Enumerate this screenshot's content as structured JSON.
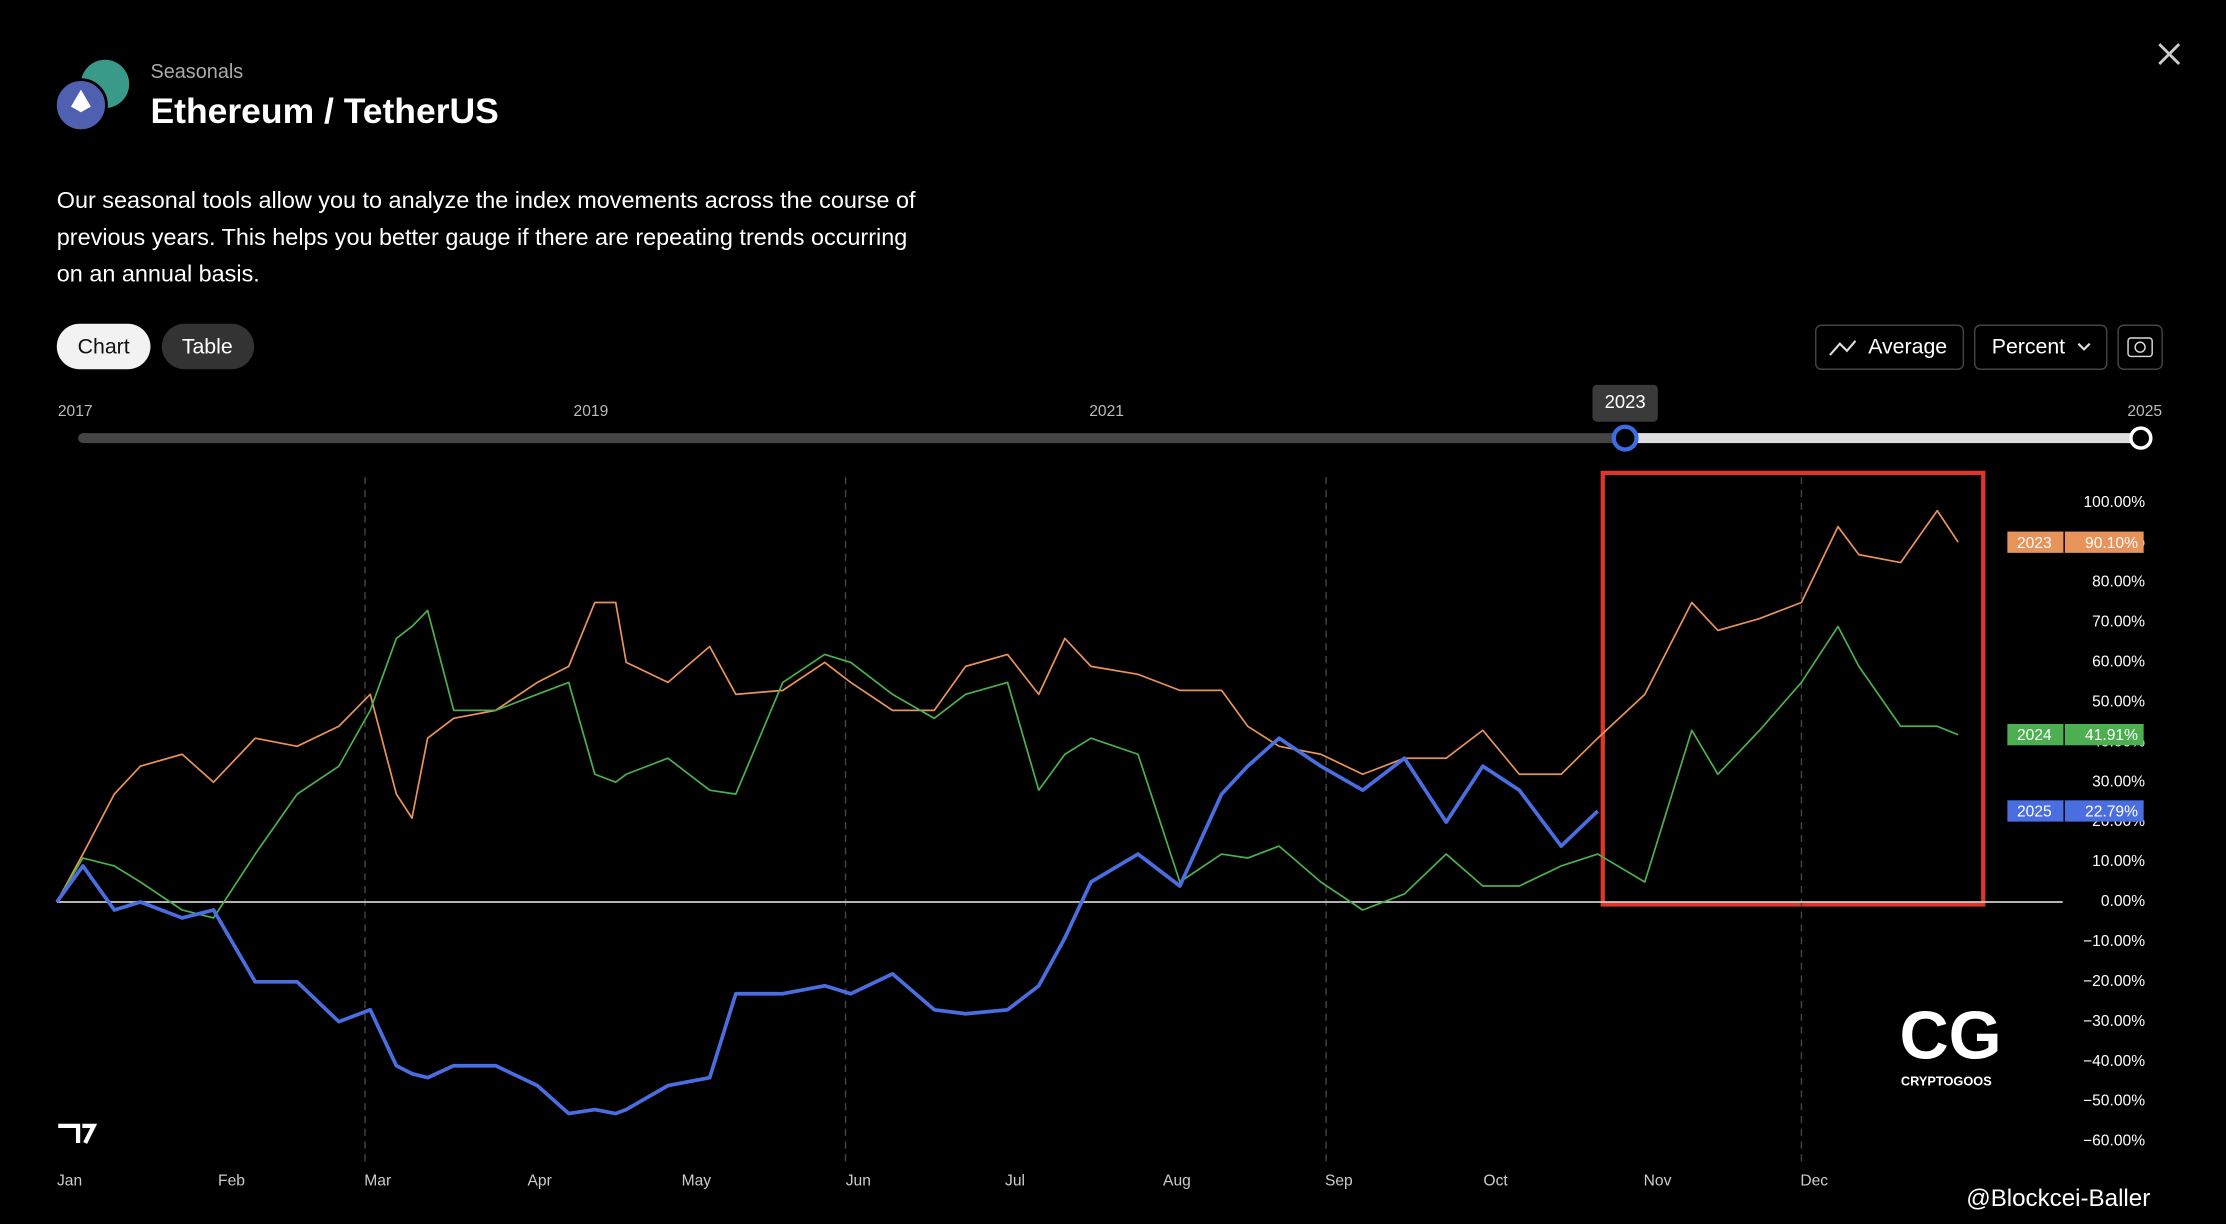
{
  "header": {
    "subtitle": "Seasonals",
    "title": "Ethereum / TetherUS"
  },
  "description": [
    "Our seasonal tools allow you to analyze the index movements across the course of",
    "previous years. This helps you better gauge if there are repeating trends occurring",
    "on an annual basis."
  ],
  "tabs": [
    "Chart",
    "Table"
  ],
  "controls": {
    "average": "Average",
    "mode": "Percent"
  },
  "slider": {
    "range": [
      2017,
      2025
    ],
    "ticks": [
      2017,
      2019,
      2021,
      2025
    ],
    "selected_start": 2023
  },
  "chart_data": {
    "type": "line",
    "x": [
      0,
      5,
      11,
      16,
      24,
      30,
      38,
      46,
      54,
      60,
      65,
      68,
      71,
      76,
      84,
      92,
      98,
      103,
      107,
      109,
      117,
      125,
      130,
      139,
      147,
      152,
      160,
      168,
      174,
      182,
      188,
      193,
      198,
      207,
      215,
      223,
      228,
      234,
      242,
      250,
      258,
      266,
      273,
      280,
      288,
      295,
      304,
      313,
      318,
      326,
      334,
      341,
      345,
      353,
      360,
      364
    ],
    "xlim": [
      0,
      365
    ],
    "xticks": [
      {
        "value": 0,
        "label": "Jan"
      },
      {
        "value": 31,
        "label": "Feb"
      },
      {
        "value": 59,
        "label": "Mar"
      },
      {
        "value": 90,
        "label": "Apr"
      },
      {
        "value": 120,
        "label": "May"
      },
      {
        "value": 151,
        "label": "Jun"
      },
      {
        "value": 181,
        "label": "Jul"
      },
      {
        "value": 212,
        "label": "Aug"
      },
      {
        "value": 243,
        "label": "Sep"
      },
      {
        "value": 273,
        "label": "Oct"
      },
      {
        "value": 304,
        "label": "Nov"
      },
      {
        "value": 334,
        "label": "Dec"
      }
    ],
    "ylim": [
      -60,
      100
    ],
    "yticks": [
      {
        "value": 100,
        "label": "100.00%"
      },
      {
        "value": 90,
        "label": "90.00%"
      },
      {
        "value": 80,
        "label": "80.00%"
      },
      {
        "value": 70,
        "label": "70.00%"
      },
      {
        "value": 60,
        "label": "60.00%"
      },
      {
        "value": 50,
        "label": "50.00%"
      },
      {
        "value": 40,
        "label": "40.00%"
      },
      {
        "value": 30,
        "label": "30.00%"
      },
      {
        "value": 20,
        "label": "20.00%"
      },
      {
        "value": 10,
        "label": "10.00%"
      },
      {
        "value": 0,
        "label": "0.00%"
      },
      {
        "value": -10,
        "label": "−10.00%"
      },
      {
        "value": -20,
        "label": "−20.00%"
      },
      {
        "value": -30,
        "label": "−30.00%"
      },
      {
        "value": -40,
        "label": "−40.00%"
      },
      {
        "value": -50,
        "label": "−50.00%"
      },
      {
        "value": -60,
        "label": "−60.00%"
      }
    ],
    "series": [
      {
        "name": "2023",
        "color": "#e8935a",
        "values": [
          0,
          12,
          27,
          34,
          37,
          30,
          41,
          39,
          44,
          52,
          27,
          21,
          41,
          46,
          48,
          55,
          59,
          75,
          75,
          60,
          55,
          64,
          52,
          53,
          60,
          55,
          48,
          48,
          59,
          62,
          52,
          66,
          59,
          57,
          53,
          53,
          44,
          39,
          37,
          32,
          36,
          36,
          43,
          32,
          32,
          41,
          52,
          75,
          68,
          71,
          75,
          94,
          87,
          85,
          98,
          90.1
        ],
        "value_labels": [
          null,
          null,
          null,
          null,
          null,
          null,
          null,
          null,
          null,
          null,
          null,
          null,
          null,
          null,
          null,
          null,
          null,
          null,
          null,
          null,
          null,
          null,
          null,
          null,
          null,
          null,
          null,
          null,
          null,
          null,
          null,
          null,
          null,
          null,
          null,
          null,
          null,
          null,
          null,
          null,
          null,
          null,
          null,
          null,
          null,
          null,
          null,
          null,
          null,
          null,
          null,
          null,
          null,
          null,
          null,
          "90.10%"
        ]
      },
      {
        "name": "2024",
        "color": "#4caf50",
        "values": [
          0,
          11,
          9,
          5,
          -2,
          -4,
          12,
          27,
          34,
          48,
          66,
          69,
          73,
          48,
          48,
          52,
          55,
          32,
          30,
          32,
          36,
          28,
          27,
          55,
          62,
          60,
          52,
          46,
          52,
          55,
          28,
          37,
          41,
          37,
          5,
          12,
          11,
          14,
          5,
          -2,
          2,
          12,
          4,
          4,
          9,
          12,
          5,
          43,
          32,
          43,
          55,
          69,
          59,
          44,
          44,
          41.91
        ],
        "value_labels": [
          null,
          null,
          null,
          null,
          null,
          null,
          null,
          null,
          null,
          null,
          null,
          null,
          null,
          null,
          null,
          null,
          null,
          null,
          null,
          null,
          null,
          null,
          null,
          null,
          null,
          null,
          null,
          null,
          null,
          null,
          null,
          null,
          null,
          null,
          null,
          null,
          null,
          null,
          null,
          null,
          null,
          null,
          null,
          null,
          null,
          null,
          null,
          null,
          null,
          null,
          null,
          null,
          null,
          null,
          null,
          "41.91%"
        ]
      },
      {
        "name": "2025",
        "color": "#4a6ee0",
        "values": [
          0,
          9,
          -2,
          0,
          -4,
          -2,
          -20,
          -20,
          -30,
          -27,
          -41,
          -43,
          -44,
          -41,
          -41,
          -46,
          -53,
          -52,
          -53,
          -52,
          -46,
          -44,
          -23,
          -23,
          -21,
          -23,
          -18,
          -27,
          -28,
          -27,
          -21,
          -9,
          5,
          12,
          4,
          27,
          34,
          41,
          34,
          28,
          36,
          20,
          34,
          28,
          14,
          22.79,
          null,
          null,
          null,
          null,
          null,
          null,
          null,
          null,
          null,
          null
        ],
        "value_labels": [
          null,
          null,
          null,
          null,
          null,
          null,
          null,
          null,
          null,
          null,
          null,
          null,
          null,
          null,
          null,
          null,
          null,
          null,
          null,
          null,
          null,
          null,
          null,
          null,
          null,
          null,
          null,
          null,
          null,
          null,
          null,
          null,
          null,
          null,
          null,
          null,
          null,
          null,
          null,
          null,
          null,
          null,
          null,
          null,
          null,
          "22.79%",
          null,
          null,
          null,
          null,
          null,
          null,
          null,
          null,
          null,
          null
        ]
      }
    ]
  },
  "logo": {
    "brand": "CRYPTOGOOS"
  },
  "watermark": "@Blockcei-Baller"
}
